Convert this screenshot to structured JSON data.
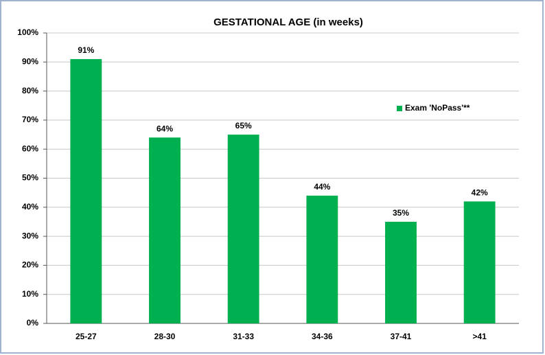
{
  "chart_data": {
    "type": "bar",
    "title": "GESTATIONAL AGE (in weeks)",
    "categories": [
      "25-27",
      "28-30",
      "31-33",
      "34-36",
      "37-41",
      ">41"
    ],
    "values": [
      91,
      64,
      65,
      44,
      35,
      42
    ],
    "value_labels": [
      "91%",
      "64%",
      "65%",
      "44%",
      "35%",
      "42%"
    ],
    "color": "#00b050",
    "legend": {
      "position": "right",
      "entries": [
        "Exam 'NoPass'**"
      ]
    },
    "ylim": [
      0,
      100
    ],
    "yticks": [
      {
        "value": 0,
        "label": "0%"
      },
      {
        "value": 10,
        "label": "10%"
      },
      {
        "value": 20,
        "label": "20%"
      },
      {
        "value": 30,
        "label": "30%"
      },
      {
        "value": 40,
        "label": "40%"
      },
      {
        "value": 50,
        "label": "50%"
      },
      {
        "value": 60,
        "label": "60%"
      },
      {
        "value": 70,
        "label": "70%"
      },
      {
        "value": 80,
        "label": "80%"
      },
      {
        "value": 90,
        "label": "90%"
      },
      {
        "value": 100,
        "label": "100%"
      }
    ],
    "grid": true
  }
}
